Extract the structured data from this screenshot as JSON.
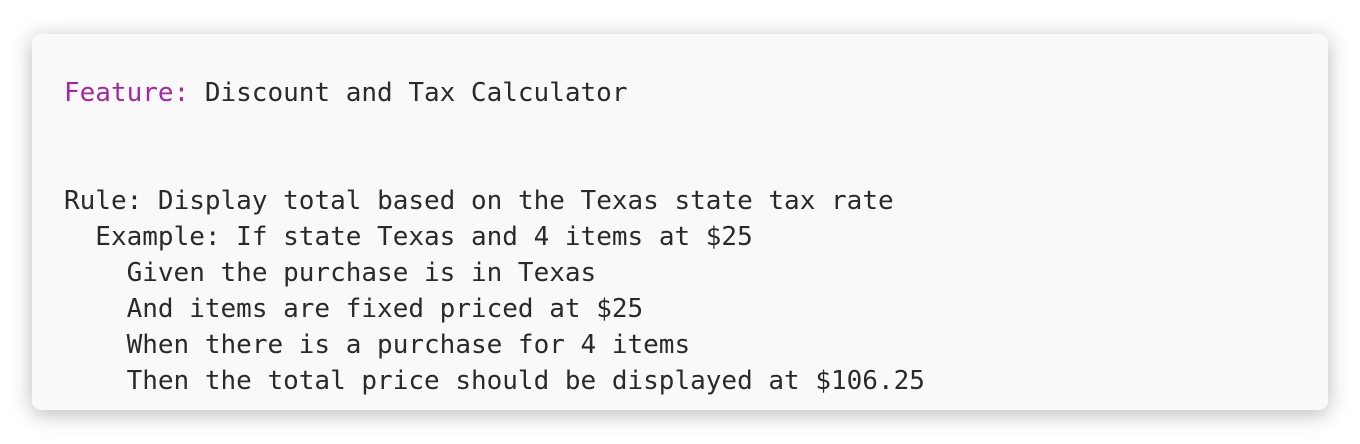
{
  "feature": {
    "keyword": "Feature:",
    "name": "Discount and Tax Calculator"
  },
  "lines": [
    "Rule: Display total based on the Texas state tax rate",
    "Example: If state Texas and 4 items at $25",
    "Given the purchase is in Texas",
    "And items are fixed priced at $25",
    "When there is a purchase for 4 items",
    "Then the total price should be displayed at $106.25"
  ]
}
